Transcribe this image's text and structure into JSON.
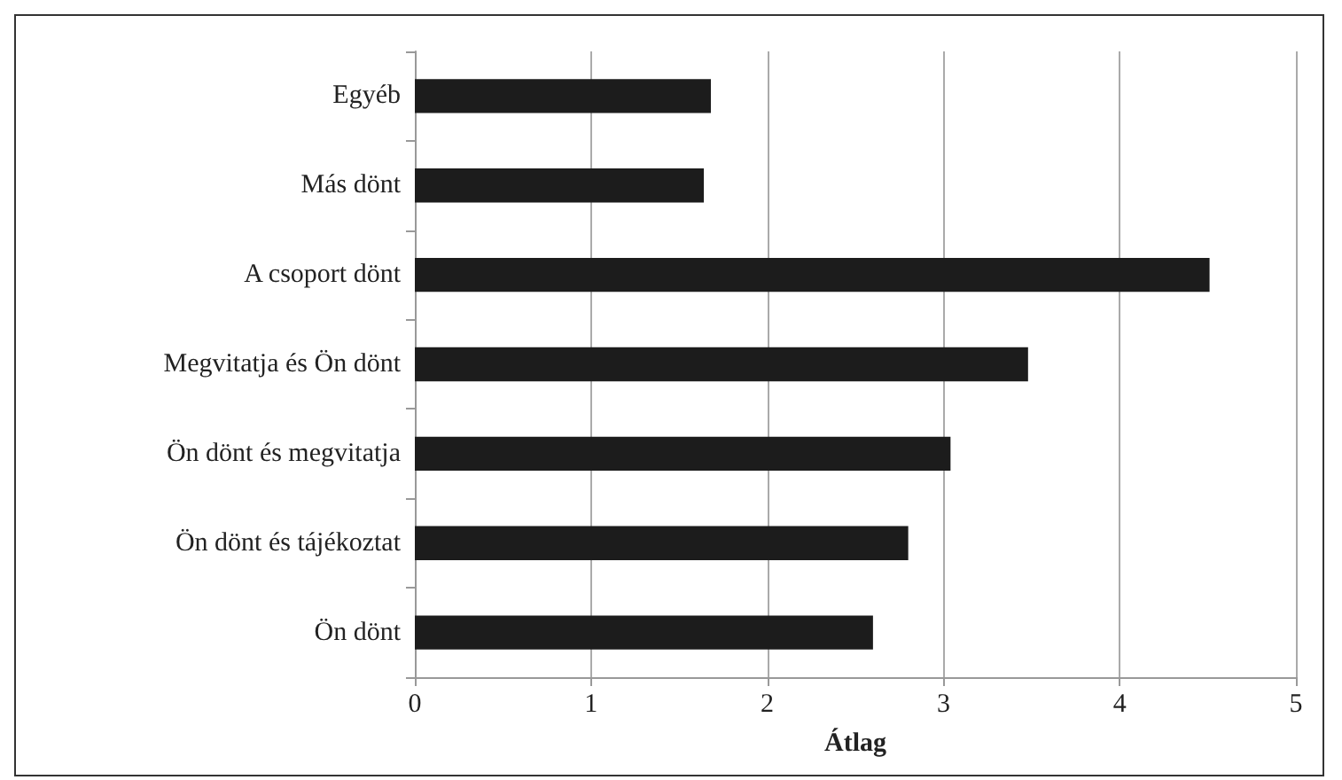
{
  "chart_data": {
    "type": "bar",
    "orientation": "horizontal",
    "xlabel": "Átlag",
    "categories": [
      "Egyéb",
      "Más dönt",
      "A csoport dönt",
      "Megvitatja és Ön dönt",
      "Ön dönt és megvitatja",
      "Ön dönt és tájékoztat",
      "Ön dönt"
    ],
    "values": [
      1.68,
      1.64,
      4.51,
      3.48,
      3.04,
      2.8,
      2.6
    ],
    "color": "#1c1c1c",
    "xlim": [
      0,
      5
    ],
    "xticks": [
      0,
      1,
      2,
      3,
      4,
      5
    ],
    "grid": "x"
  }
}
